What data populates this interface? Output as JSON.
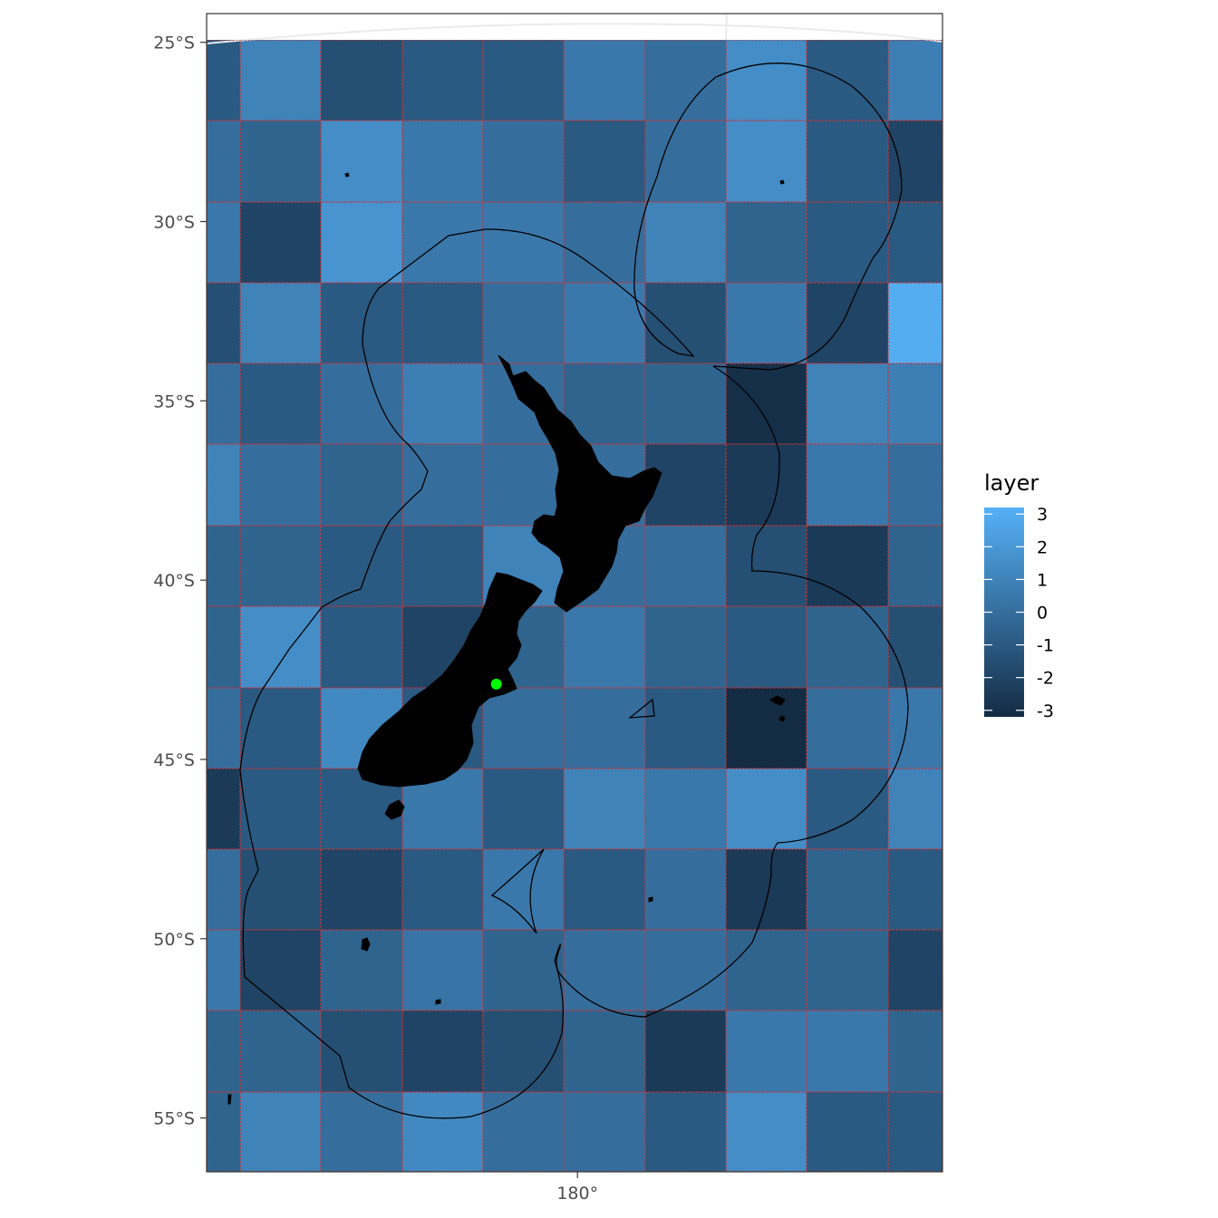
{
  "chart_data": {
    "type": "heatmap",
    "title": "",
    "xlabel": "",
    "ylabel": "",
    "x_ticks": [
      "180°"
    ],
    "y_ticks": [
      "25°S",
      "30°S",
      "35°S",
      "40°S",
      "45°S",
      "50°S",
      "55°S"
    ],
    "y_tick_values": [
      -25,
      -30,
      -35,
      -40,
      -45,
      -50,
      -55
    ],
    "x_range_deg": [
      160.8,
      198.9
    ],
    "y_range_deg": [
      -56.5,
      -24.2
    ],
    "grid_lines": false,
    "cell_border_color": "#cc3333",
    "point": {
      "lon": 175.8,
      "lat": -42.9,
      "color": "#00ff00"
    },
    "legend": {
      "title": "layer",
      "position": "right",
      "labels": [
        "3",
        "2",
        "1",
        "0",
        "-1",
        "-2",
        "-3"
      ],
      "values": [
        3,
        2,
        1,
        0,
        -1,
        -2,
        -3
      ],
      "range": [
        -3.2,
        3.2
      ],
      "color_low": "#132B43",
      "color_high": "#56B1F7"
    },
    "grid_values": [
      [
        -1.0,
        1.0,
        -1.5,
        -1.0,
        -1.0,
        0.5,
        0.0,
        1.5,
        -1.0,
        0.8
      ],
      [
        0.0,
        -0.5,
        1.5,
        0.5,
        0.0,
        -1.0,
        0.0,
        1.5,
        -1.0,
        -2.0
      ],
      [
        0.5,
        -2.0,
        1.8,
        0.5,
        0.5,
        0.0,
        1.0,
        -0.5,
        -1.0,
        -1.0
      ],
      [
        -1.5,
        1.0,
        -1.0,
        -1.0,
        0.0,
        0.5,
        -1.5,
        0.5,
        -2.0,
        3.0
      ],
      [
        0.0,
        -1.0,
        0.0,
        0.8,
        0.0,
        -0.5,
        -0.5,
        -3.0,
        1.0,
        0.8
      ],
      [
        1.0,
        0.0,
        -0.5,
        0.0,
        0.0,
        0.0,
        -2.0,
        -2.5,
        0.5,
        0.0
      ],
      [
        -0.5,
        -0.5,
        -1.0,
        -1.0,
        1.0,
        0.0,
        0.0,
        -1.5,
        -2.5,
        -0.5
      ],
      [
        -0.5,
        1.5,
        -1.0,
        -2.0,
        -0.5,
        0.5,
        -0.5,
        -1.0,
        -0.5,
        -1.5
      ],
      [
        0.0,
        -1.0,
        1.3,
        -1.0,
        0.0,
        0.0,
        -1.0,
        -3.3,
        0.0,
        0.5
      ],
      [
        -2.5,
        -1.0,
        -1.0,
        0.5,
        -1.0,
        1.0,
        0.5,
        1.5,
        -1.0,
        1.0
      ],
      [
        0.0,
        -1.5,
        -2.0,
        -1.0,
        0.5,
        -1.0,
        0.0,
        -2.5,
        -0.5,
        -1.0
      ],
      [
        0.5,
        -2.0,
        -0.5,
        0.3,
        -0.5,
        0.0,
        0.0,
        -0.5,
        -0.5,
        -2.0
      ],
      [
        -0.5,
        -0.5,
        -1.5,
        -2.0,
        -1.5,
        -0.5,
        -2.5,
        0.5,
        0.5,
        -0.5
      ],
      [
        -0.5,
        1.0,
        0.0,
        1.3,
        0.0,
        0.0,
        -1.0,
        1.5,
        -1.0,
        -1.0
      ]
    ]
  }
}
